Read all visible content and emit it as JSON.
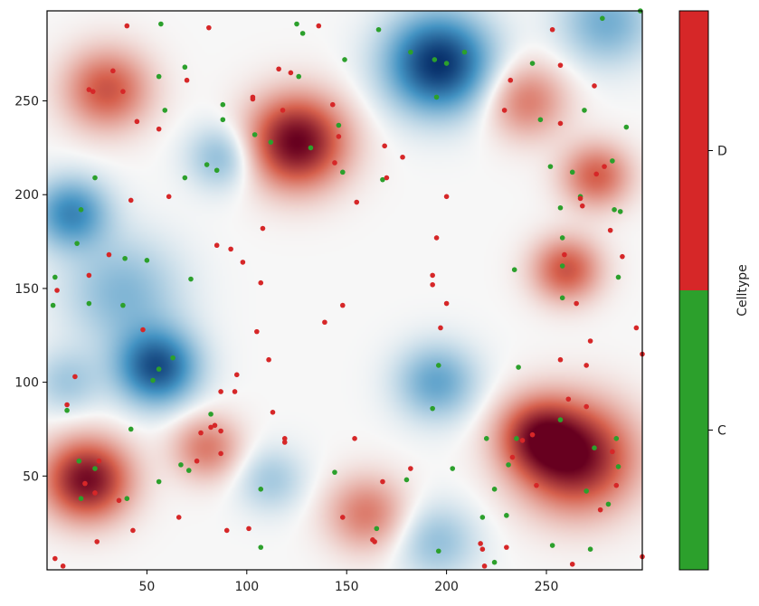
{
  "chart_data": {
    "type": "scatter",
    "title": "",
    "xlabel": "",
    "ylabel": "",
    "xlim": [
      0,
      298
    ],
    "ylim": [
      0,
      298
    ],
    "x_ticks": [
      50,
      100,
      150,
      200,
      250
    ],
    "y_ticks": [
      50,
      100,
      150,
      200,
      250
    ],
    "background_field": {
      "description_scale": "diverging red-white-blue",
      "colors": {
        "negative": "#08306b",
        "mid": "#f7f7f7",
        "positive": "#67001f"
      },
      "blobs": [
        {
          "x": 196,
          "y": 270,
          "sigma": 18,
          "v": -1.0
        },
        {
          "x": 55,
          "y": 108,
          "sigma": 14,
          "v": -0.85
        },
        {
          "x": 12,
          "y": 190,
          "sigma": 13,
          "v": -0.6
        },
        {
          "x": 195,
          "y": 100,
          "sigma": 14,
          "v": -0.45
        },
        {
          "x": 38,
          "y": 148,
          "sigma": 20,
          "v": -0.35
        },
        {
          "x": 88,
          "y": 220,
          "sigma": 12,
          "v": -0.35
        },
        {
          "x": 280,
          "y": 292,
          "sigma": 16,
          "v": -0.4
        },
        {
          "x": 195,
          "y": 15,
          "sigma": 14,
          "v": -0.3
        },
        {
          "x": 112,
          "y": 48,
          "sigma": 12,
          "v": -0.25
        },
        {
          "x": 10,
          "y": 100,
          "sigma": 12,
          "v": -0.25
        },
        {
          "x": 125,
          "y": 228,
          "sigma": 17,
          "v": 1.0
        },
        {
          "x": 20,
          "y": 48,
          "sigma": 15,
          "v": 0.95
        },
        {
          "x": 265,
          "y": 60,
          "sigma": 20,
          "v": 0.95
        },
        {
          "x": 245,
          "y": 72,
          "sigma": 14,
          "v": 0.6
        },
        {
          "x": 260,
          "y": 160,
          "sigma": 12,
          "v": 0.6
        },
        {
          "x": 275,
          "y": 210,
          "sigma": 12,
          "v": 0.55
        },
        {
          "x": 30,
          "y": 256,
          "sigma": 15,
          "v": 0.6
        },
        {
          "x": 80,
          "y": 65,
          "sigma": 12,
          "v": 0.45
        },
        {
          "x": 160,
          "y": 30,
          "sigma": 14,
          "v": 0.45
        },
        {
          "x": 240,
          "y": 250,
          "sigma": 14,
          "v": 0.45
        }
      ]
    },
    "colorbar": {
      "label": "Celltype",
      "categories": [
        "C",
        "D"
      ],
      "colors": {
        "C": "#2ca02c",
        "D": "#d62728"
      }
    },
    "series": [
      {
        "name": "C",
        "color": "#2ca02c",
        "points": [
          [
            4,
            156
          ],
          [
            3,
            141
          ],
          [
            10,
            85
          ],
          [
            15,
            174
          ],
          [
            17,
            192
          ],
          [
            21,
            142
          ],
          [
            24,
            209
          ],
          [
            16,
            58
          ],
          [
            17,
            38
          ],
          [
            24,
            54
          ],
          [
            38,
            141
          ],
          [
            39,
            166
          ],
          [
            40,
            38
          ],
          [
            42,
            75
          ],
          [
            50,
            165
          ],
          [
            53,
            101
          ],
          [
            56,
            107
          ],
          [
            56,
            47
          ],
          [
            57,
            291
          ],
          [
            56,
            263
          ],
          [
            59,
            245
          ],
          [
            63,
            113
          ],
          [
            67,
            56
          ],
          [
            69,
            268
          ],
          [
            69,
            209
          ],
          [
            71,
            53
          ],
          [
            72,
            155
          ],
          [
            80,
            216
          ],
          [
            82,
            83
          ],
          [
            85,
            213
          ],
          [
            88,
            248
          ],
          [
            88,
            240
          ],
          [
            104,
            232
          ],
          [
            107,
            43
          ],
          [
            107,
            12
          ],
          [
            112,
            228
          ],
          [
            125,
            291
          ],
          [
            126,
            263
          ],
          [
            128,
            286
          ],
          [
            132,
            225
          ],
          [
            148,
            212
          ],
          [
            149,
            272
          ],
          [
            144,
            52
          ],
          [
            146,
            237
          ],
          [
            166,
            288
          ],
          [
            165,
            22
          ],
          [
            168,
            208
          ],
          [
            182,
            276
          ],
          [
            180,
            48
          ],
          [
            194,
            272
          ],
          [
            195,
            252
          ],
          [
            193,
            86
          ],
          [
            196,
            109
          ],
          [
            200,
            270
          ],
          [
            203,
            54
          ],
          [
            209,
            276
          ],
          [
            218,
            28
          ],
          [
            220,
            70
          ],
          [
            224,
            43
          ],
          [
            230,
            29
          ],
          [
            236,
            108
          ],
          [
            234,
            160
          ],
          [
            243,
            270
          ],
          [
            247,
            240
          ],
          [
            252,
            215
          ],
          [
            253,
            13
          ],
          [
            257,
            80
          ],
          [
            257,
            193
          ],
          [
            258,
            177
          ],
          [
            258,
            162
          ],
          [
            258,
            145
          ],
          [
            263,
            212
          ],
          [
            267,
            199
          ],
          [
            269,
            245
          ],
          [
            270,
            42
          ],
          [
            272,
            11
          ],
          [
            274,
            65
          ],
          [
            278,
            294
          ],
          [
            281,
            35
          ],
          [
            283,
            218
          ],
          [
            284,
            192
          ],
          [
            285,
            70
          ],
          [
            286,
            55
          ],
          [
            286,
            156
          ],
          [
            287,
            191
          ],
          [
            290,
            236
          ],
          [
            297,
            298
          ],
          [
            196,
            10
          ],
          [
            224,
            4
          ],
          [
            231,
            56
          ],
          [
            235,
            70
          ]
        ]
      },
      {
        "name": "D",
        "color": "#d62728",
        "points": [
          [
            5,
            149
          ],
          [
            4,
            6
          ],
          [
            8,
            2
          ],
          [
            10,
            88
          ],
          [
            14,
            103
          ],
          [
            19,
            46
          ],
          [
            21,
            256
          ],
          [
            21,
            157
          ],
          [
            23,
            255
          ],
          [
            24,
            41
          ],
          [
            25,
            15
          ],
          [
            26,
            58
          ],
          [
            31,
            168
          ],
          [
            33,
            266
          ],
          [
            36,
            37
          ],
          [
            38,
            255
          ],
          [
            40,
            290
          ],
          [
            42,
            197
          ],
          [
            43,
            21
          ],
          [
            45,
            239
          ],
          [
            48,
            128
          ],
          [
            56,
            235
          ],
          [
            61,
            199
          ],
          [
            66,
            28
          ],
          [
            70,
            261
          ],
          [
            75,
            58
          ],
          [
            77,
            73
          ],
          [
            82,
            76
          ],
          [
            81,
            289
          ],
          [
            84,
            77
          ],
          [
            85,
            173
          ],
          [
            87,
            95
          ],
          [
            87,
            74
          ],
          [
            87,
            62
          ],
          [
            90,
            21
          ],
          [
            92,
            171
          ],
          [
            94,
            95
          ],
          [
            95,
            104
          ],
          [
            98,
            164
          ],
          [
            101,
            22
          ],
          [
            103,
            251
          ],
          [
            103,
            252
          ],
          [
            105,
            127
          ],
          [
            107,
            153
          ],
          [
            108,
            182
          ],
          [
            111,
            112
          ],
          [
            113,
            84
          ],
          [
            116,
            267
          ],
          [
            118,
            245
          ],
          [
            119,
            68
          ],
          [
            119,
            70
          ],
          [
            122,
            265
          ],
          [
            136,
            290
          ],
          [
            139,
            132
          ],
          [
            143,
            248
          ],
          [
            144,
            217
          ],
          [
            146,
            231
          ],
          [
            148,
            141
          ],
          [
            148,
            28
          ],
          [
            154,
            70
          ],
          [
            155,
            196
          ],
          [
            163,
            16
          ],
          [
            164,
            15
          ],
          [
            168,
            47
          ],
          [
            169,
            226
          ],
          [
            170,
            209
          ],
          [
            178,
            220
          ],
          [
            182,
            54
          ],
          [
            193,
            157
          ],
          [
            193,
            152
          ],
          [
            195,
            177
          ],
          [
            197,
            129
          ],
          [
            200,
            199
          ],
          [
            200,
            142
          ],
          [
            217,
            14
          ],
          [
            218,
            11
          ],
          [
            219,
            2
          ],
          [
            229,
            245
          ],
          [
            230,
            12
          ],
          [
            232,
            261
          ],
          [
            233,
            60
          ],
          [
            238,
            69
          ],
          [
            243,
            72
          ],
          [
            245,
            45
          ],
          [
            253,
            288
          ],
          [
            257,
            269
          ],
          [
            257,
            238
          ],
          [
            257,
            112
          ],
          [
            259,
            168
          ],
          [
            261,
            91
          ],
          [
            263,
            3
          ],
          [
            265,
            142
          ],
          [
            270,
            87
          ],
          [
            270,
            109
          ],
          [
            272,
            122
          ],
          [
            274,
            258
          ],
          [
            275,
            211
          ],
          [
            277,
            32
          ],
          [
            279,
            215
          ],
          [
            282,
            181
          ],
          [
            283,
            63
          ],
          [
            285,
            45
          ],
          [
            288,
            167
          ],
          [
            295,
            129
          ],
          [
            298,
            7
          ],
          [
            298,
            115
          ],
          [
            267,
            198
          ],
          [
            268,
            194
          ]
        ]
      }
    ]
  }
}
